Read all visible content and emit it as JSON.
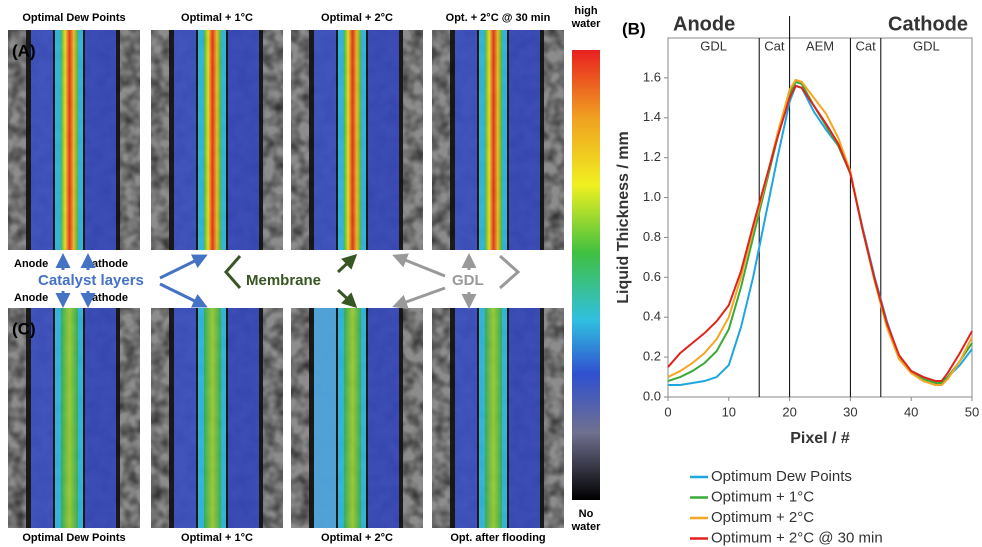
{
  "panels": {
    "labels": [
      "(A)",
      "(B)",
      "(C)"
    ],
    "top_titles": [
      "Optimal Dew Points",
      "Optimal + 1°C",
      "Optimal + 2°C",
      "Opt. + 2°C @ 30 min"
    ],
    "bottom_titles": [
      "Optimal Dew Points",
      "Optimal + 1°C",
      "Optimal + 2°C",
      "Opt. after flooding"
    ],
    "colorbar_top": [
      "high",
      "water"
    ],
    "colorbar_bottom": [
      "No",
      "water"
    ],
    "annotations": {
      "anode_top": "Anode",
      "cathode_top": "Cathode",
      "catalyst": "Catalyst layers",
      "anode_bottom": "Anode",
      "cathode_bottom": "Cathode",
      "membrane": "Membrane",
      "gdl": "GDL"
    }
  },
  "chart_data": {
    "type": "line",
    "header": [
      "Anode",
      "Cathode"
    ],
    "regions": [
      "GDL",
      "Cat",
      "AEM",
      "Cat",
      "GDL"
    ],
    "region_bounds": [
      15,
      20,
      30,
      35
    ],
    "x_label": "Pixel / #",
    "y_label": "Liquid Thickness / mm",
    "xlim": [
      0,
      50
    ],
    "ylim": [
      0,
      1.8
    ],
    "xticks": [
      0,
      10,
      20,
      30,
      40,
      50
    ],
    "yticks": [
      {
        "value": 0,
        "label": "0.0"
      },
      {
        "value": 0.2,
        "label": "0.2"
      },
      {
        "value": 0.4,
        "label": "0.4"
      },
      {
        "value": 0.6,
        "label": "0.6"
      },
      {
        "value": 0.8,
        "label": "0.8"
      },
      {
        "value": 1,
        "label": "1.0"
      },
      {
        "value": 1.2,
        "label": "1.2"
      },
      {
        "value": 1.4,
        "label": "1.4"
      },
      {
        "value": 1.6,
        "label": "1.6"
      }
    ],
    "x": [
      0,
      2,
      4,
      6,
      8,
      10,
      12,
      14,
      16,
      18,
      20,
      21,
      22,
      24,
      26,
      28,
      30,
      32,
      34,
      36,
      38,
      40,
      42,
      44,
      45,
      46,
      48,
      50
    ],
    "series": [
      {
        "name": "Optimum Dew Points",
        "color": "#1ea6e0",
        "values": [
          0.06,
          0.06,
          0.07,
          0.08,
          0.1,
          0.16,
          0.35,
          0.6,
          0.9,
          1.2,
          1.48,
          1.56,
          1.55,
          1.43,
          1.34,
          1.26,
          1.12,
          0.85,
          0.6,
          0.38,
          0.2,
          0.13,
          0.1,
          0.08,
          0.08,
          0.1,
          0.16,
          0.24
        ]
      },
      {
        "name": "Optimum + 1°C",
        "color": "#3aaa3a",
        "values": [
          0.08,
          0.1,
          0.13,
          0.17,
          0.23,
          0.34,
          0.55,
          0.8,
          1.05,
          1.3,
          1.52,
          1.58,
          1.57,
          1.46,
          1.36,
          1.26,
          1.12,
          0.84,
          0.58,
          0.36,
          0.2,
          0.13,
          0.09,
          0.07,
          0.07,
          0.1,
          0.18,
          0.27
        ]
      },
      {
        "name": "Optimum + 2°C",
        "color": "#f5a623",
        "values": [
          0.1,
          0.13,
          0.17,
          0.22,
          0.29,
          0.4,
          0.6,
          0.84,
          1.07,
          1.32,
          1.54,
          1.59,
          1.58,
          1.5,
          1.42,
          1.3,
          1.13,
          0.84,
          0.58,
          0.35,
          0.19,
          0.12,
          0.08,
          0.06,
          0.06,
          0.09,
          0.18,
          0.3
        ]
      },
      {
        "name": "Optimum + 2°C @ 30 min",
        "color": "#e0241c",
        "values": [
          0.15,
          0.22,
          0.27,
          0.32,
          0.38,
          0.46,
          0.63,
          0.86,
          1.08,
          1.3,
          1.5,
          1.56,
          1.55,
          1.46,
          1.37,
          1.27,
          1.12,
          0.84,
          0.59,
          0.37,
          0.21,
          0.13,
          0.1,
          0.08,
          0.08,
          0.12,
          0.22,
          0.33
        ]
      }
    ]
  }
}
